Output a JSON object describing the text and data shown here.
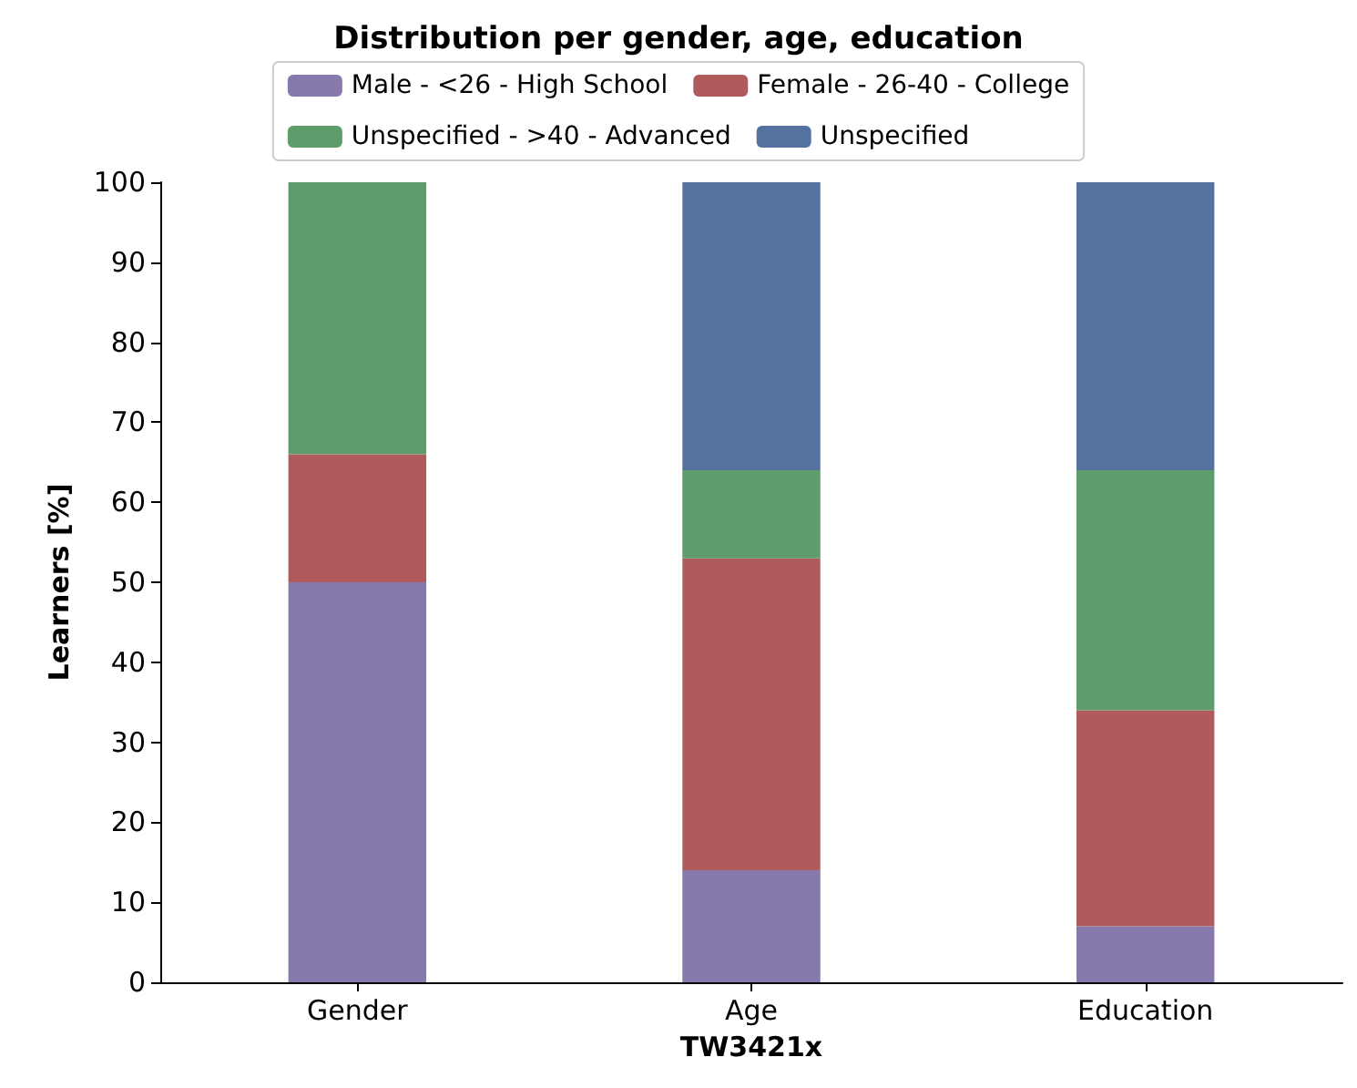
{
  "chart_data": {
    "type": "bar",
    "title": "Distribution per gender, age, education",
    "xlabel": "TW3421x",
    "ylabel": "Learners [%]",
    "categories": [
      "Gender",
      "Age",
      "Education"
    ],
    "stacked": true,
    "ylim": [
      0,
      100
    ],
    "yticks": [
      0,
      10,
      20,
      30,
      40,
      50,
      60,
      70,
      80,
      90,
      100
    ],
    "legend": "top",
    "grid": false,
    "series": [
      {
        "name": "Male - <26 - High School",
        "color": "#8779ab",
        "values": [
          50,
          14,
          7
        ]
      },
      {
        "name": "Female - 26-40 - College",
        "color": "#b05b5b",
        "values": [
          16,
          39,
          27
        ]
      },
      {
        "name": "Unspecified - >40 - Advanced",
        "color": "#5e9c6b",
        "values": [
          34,
          11,
          30
        ]
      },
      {
        "name": "Unspecified",
        "color": "#54719f",
        "values": [
          0,
          36,
          36
        ]
      }
    ]
  }
}
